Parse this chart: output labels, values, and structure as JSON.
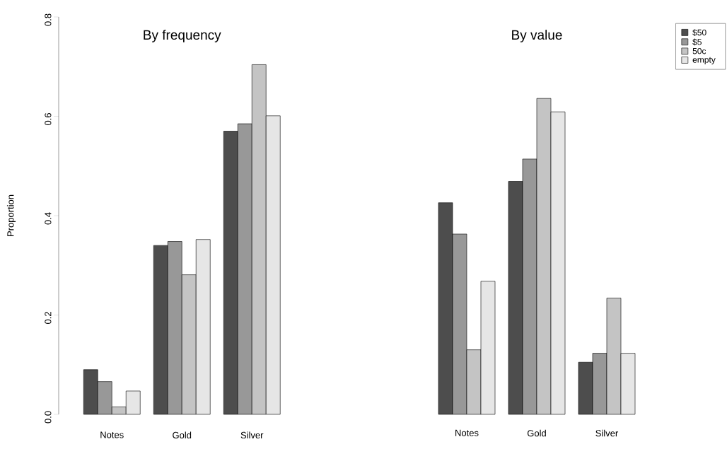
{
  "chart_data": [
    {
      "type": "bar",
      "title": "By frequency",
      "ylabel": "Proportion",
      "categories": [
        "Notes",
        "Gold",
        "Silver"
      ],
      "series": [
        {
          "color": "#4d4d4d",
          "values": [
            0.09,
            0.34,
            0.57
          ]
        },
        {
          "color": "#989898",
          "values": [
            0.066,
            0.348,
            0.585
          ]
        },
        {
          "color": "#c4c4c4",
          "values": [
            0.015,
            0.281,
            0.704
          ]
        },
        {
          "color": "#e6e6e6",
          "values": [
            0.047,
            0.352,
            0.601
          ]
        }
      ],
      "ylim": [
        0,
        0.8
      ],
      "yticks": [
        {
          "value": 0,
          "label": "0.0"
        },
        {
          "value": 0.2,
          "label": "0.2"
        },
        {
          "value": 0.4,
          "label": "0.4"
        },
        {
          "value": 0.6,
          "label": "0.6"
        },
        {
          "value": 0.8,
          "label": "0.8"
        }
      ]
    },
    {
      "type": "bar",
      "title": "By value",
      "categories": [
        "Notes",
        "Gold",
        "Silver"
      ],
      "series": [
        {
          "name": "$50",
          "color": "#4d4d4d",
          "values": [
            0.426,
            0.469,
            0.105
          ]
        },
        {
          "name": "$5",
          "color": "#989898",
          "values": [
            0.363,
            0.514,
            0.123
          ]
        },
        {
          "name": "50c",
          "color": "#c4c4c4",
          "values": [
            0.13,
            0.636,
            0.234
          ]
        },
        {
          "name": "empty",
          "color": "#e6e6e6",
          "values": [
            0.268,
            0.609,
            0.123
          ]
        }
      ],
      "ylim": [
        0,
        0.8
      ],
      "tick_labels": "x",
      "legend": "top right"
    }
  ]
}
